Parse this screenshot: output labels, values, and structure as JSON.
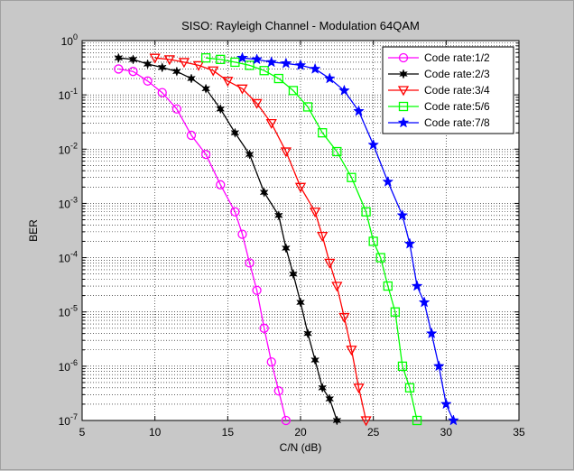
{
  "chart_data": {
    "type": "line",
    "title": "SISO: Rayleigh Channel - Modulation 64QAM",
    "xlabel": "C/N (dB)",
    "ylabel": "BER",
    "xlim": [
      5,
      35
    ],
    "ylim": [
      1e-07,
      1
    ],
    "yscale": "log",
    "grid": true,
    "legend_placement": "top-right",
    "x_ticks": [
      "5",
      "10",
      "15",
      "20",
      "25",
      "30",
      "35"
    ],
    "y_ticks": [
      {
        "base": "10",
        "exp": "0"
      },
      {
        "base": "10",
        "exp": "-1"
      },
      {
        "base": "10",
        "exp": "-2"
      },
      {
        "base": "10",
        "exp": "-3"
      },
      {
        "base": "10",
        "exp": "-4"
      },
      {
        "base": "10",
        "exp": "-5"
      },
      {
        "base": "10",
        "exp": "-6"
      },
      {
        "base": "10",
        "exp": "-7"
      }
    ],
    "series": [
      {
        "name": "Code rate:1/2",
        "color": "#ff00ff",
        "marker": "circle",
        "x": [
          7.5,
          8.5,
          9.5,
          10.5,
          11.5,
          12.5,
          13.5,
          14.5,
          15.5,
          16.0,
          16.5,
          17.0,
          17.5,
          18.0,
          18.5,
          19.0
        ],
        "y": [
          0.3,
          0.27,
          0.18,
          0.11,
          0.055,
          0.018,
          0.008,
          0.0022,
          0.0007,
          0.00027,
          8e-05,
          2.5e-05,
          5e-06,
          1.2e-06,
          3.5e-07,
          1e-07
        ]
      },
      {
        "name": "Code rate:2/3",
        "color": "#000000",
        "marker": "star6",
        "x": [
          7.5,
          8.5,
          9.5,
          10.5,
          11.5,
          12.5,
          13.5,
          14.5,
          15.5,
          16.5,
          17.5,
          18.5,
          19.0,
          19.5,
          20.0,
          20.5,
          21.0,
          21.5,
          22.0,
          22.5
        ],
        "y": [
          0.48,
          0.45,
          0.37,
          0.32,
          0.27,
          0.2,
          0.13,
          0.055,
          0.02,
          0.008,
          0.0016,
          0.0006,
          0.00015,
          5e-05,
          1.5e-05,
          4e-06,
          1.3e-06,
          4e-07,
          2.5e-07,
          1e-07
        ]
      },
      {
        "name": "Code rate:3/4",
        "color": "#ff0000",
        "marker": "triangle-down",
        "x": [
          10.0,
          11.0,
          12.0,
          13.0,
          14.0,
          15.0,
          16.0,
          17.0,
          18.0,
          19.0,
          20.0,
          21.0,
          21.5,
          22.0,
          22.5,
          23.0,
          23.5,
          24.0,
          24.5
        ],
        "y": [
          0.48,
          0.45,
          0.4,
          0.35,
          0.28,
          0.18,
          0.13,
          0.07,
          0.03,
          0.009,
          0.002,
          0.0007,
          0.00025,
          8e-05,
          3e-05,
          8e-06,
          2e-06,
          4e-07,
          1e-07
        ]
      },
      {
        "name": "Code rate:5/6",
        "color": "#00ff00",
        "marker": "square",
        "x": [
          13.5,
          14.5,
          15.5,
          16.5,
          17.5,
          18.5,
          19.5,
          20.5,
          21.5,
          22.5,
          23.5,
          24.5,
          25.0,
          25.5,
          26.0,
          26.5,
          27.0,
          27.5,
          28.0
        ],
        "y": [
          0.48,
          0.45,
          0.4,
          0.35,
          0.28,
          0.2,
          0.12,
          0.06,
          0.02,
          0.009,
          0.003,
          0.0007,
          0.0002,
          0.0001,
          3e-05,
          1e-05,
          1e-06,
          4e-07,
          1e-07
        ]
      },
      {
        "name": "Code rate:7/8",
        "color": "#0000ff",
        "marker": "star5",
        "x": [
          16.0,
          17.0,
          18.0,
          19.0,
          20.0,
          21.0,
          22.0,
          23.0,
          24.0,
          25.0,
          26.0,
          27.0,
          27.5,
          28.0,
          28.5,
          29.0,
          29.5,
          30.0,
          30.5
        ],
        "y": [
          0.48,
          0.45,
          0.4,
          0.38,
          0.35,
          0.3,
          0.2,
          0.12,
          0.05,
          0.012,
          0.0025,
          0.0006,
          0.00018,
          3e-05,
          1.5e-05,
          4e-06,
          1e-06,
          2e-07,
          1e-07
        ]
      }
    ]
  }
}
